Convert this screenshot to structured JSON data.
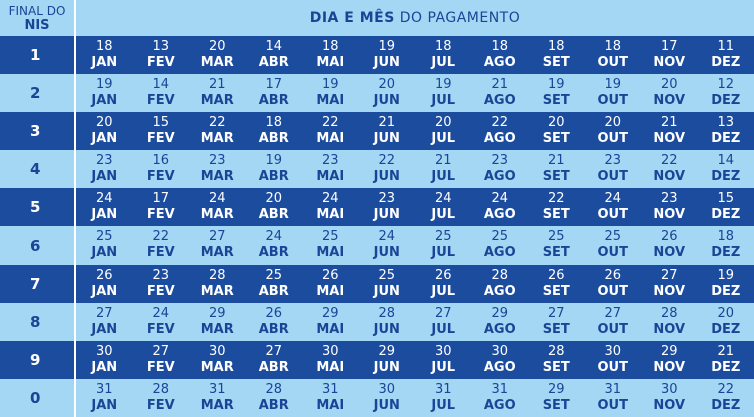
{
  "header": {
    "nis_line1": "FINAL DO",
    "nis_line2": "NIS",
    "title_bold": "DIA E MÊS",
    "title_rest": "DO PAGAMENTO"
  },
  "rows": [
    {
      "nis": "1",
      "cells": [
        [
          "18",
          "JAN"
        ],
        [
          "13",
          "FEV"
        ],
        [
          "20",
          "MAR"
        ],
        [
          "14",
          "ABR"
        ],
        [
          "18",
          "MAI"
        ],
        [
          "19",
          "JUN"
        ],
        [
          "18",
          "JUL"
        ],
        [
          "18",
          "AGO"
        ],
        [
          "18",
          "SET"
        ],
        [
          "18",
          "OUT"
        ],
        [
          "17",
          "NOV"
        ],
        [
          "11",
          "DEZ"
        ]
      ]
    },
    {
      "nis": "2",
      "cells": [
        [
          "19",
          "JAN"
        ],
        [
          "14",
          "FEV"
        ],
        [
          "21",
          "MAR"
        ],
        [
          "17",
          "ABR"
        ],
        [
          "19",
          "MAI"
        ],
        [
          "20",
          "JUN"
        ],
        [
          "19",
          "JUL"
        ],
        [
          "21",
          "AGO"
        ],
        [
          "19",
          "SET"
        ],
        [
          "19",
          "OUT"
        ],
        [
          "20",
          "NOV"
        ],
        [
          "12",
          "DEZ"
        ]
      ]
    },
    {
      "nis": "3",
      "cells": [
        [
          "20",
          "JAN"
        ],
        [
          "15",
          "FEV"
        ],
        [
          "22",
          "MAR"
        ],
        [
          "18",
          "ABR"
        ],
        [
          "22",
          "MAI"
        ],
        [
          "21",
          "JUN"
        ],
        [
          "20",
          "JUL"
        ],
        [
          "22",
          "AGO"
        ],
        [
          "20",
          "SET"
        ],
        [
          "20",
          "OUT"
        ],
        [
          "21",
          "NOV"
        ],
        [
          "13",
          "DEZ"
        ]
      ]
    },
    {
      "nis": "4",
      "cells": [
        [
          "23",
          "JAN"
        ],
        [
          "16",
          "FEV"
        ],
        [
          "23",
          "MAR"
        ],
        [
          "19",
          "ABR"
        ],
        [
          "23",
          "MAI"
        ],
        [
          "22",
          "JUN"
        ],
        [
          "21",
          "JUL"
        ],
        [
          "23",
          "AGO"
        ],
        [
          "21",
          "SET"
        ],
        [
          "23",
          "OUT"
        ],
        [
          "22",
          "NOV"
        ],
        [
          "14",
          "DEZ"
        ]
      ]
    },
    {
      "nis": "5",
      "cells": [
        [
          "24",
          "JAN"
        ],
        [
          "17",
          "FEV"
        ],
        [
          "24",
          "MAR"
        ],
        [
          "20",
          "ABR"
        ],
        [
          "24",
          "MAI"
        ],
        [
          "23",
          "JUN"
        ],
        [
          "24",
          "JUL"
        ],
        [
          "24",
          "AGO"
        ],
        [
          "22",
          "SET"
        ],
        [
          "24",
          "OUT"
        ],
        [
          "23",
          "NOV"
        ],
        [
          "15",
          "DEZ"
        ]
      ]
    },
    {
      "nis": "6",
      "cells": [
        [
          "25",
          "JAN"
        ],
        [
          "22",
          "FEV"
        ],
        [
          "27",
          "MAR"
        ],
        [
          "24",
          "ABR"
        ],
        [
          "25",
          "MAI"
        ],
        [
          "24",
          "JUN"
        ],
        [
          "25",
          "JUL"
        ],
        [
          "25",
          "AGO"
        ],
        [
          "25",
          "SET"
        ],
        [
          "25",
          "OUT"
        ],
        [
          "26",
          "NOV"
        ],
        [
          "18",
          "DEZ"
        ]
      ]
    },
    {
      "nis": "7",
      "cells": [
        [
          "26",
          "JAN"
        ],
        [
          "23",
          "FEV"
        ],
        [
          "28",
          "MAR"
        ],
        [
          "25",
          "ABR"
        ],
        [
          "26",
          "MAI"
        ],
        [
          "25",
          "JUN"
        ],
        [
          "26",
          "JUL"
        ],
        [
          "28",
          "AGO"
        ],
        [
          "26",
          "SET"
        ],
        [
          "26",
          "OUT"
        ],
        [
          "27",
          "NOV"
        ],
        [
          "19",
          "DEZ"
        ]
      ]
    },
    {
      "nis": "8",
      "cells": [
        [
          "27",
          "JAN"
        ],
        [
          "24",
          "FEV"
        ],
        [
          "29",
          "MAR"
        ],
        [
          "26",
          "ABR"
        ],
        [
          "29",
          "MAI"
        ],
        [
          "28",
          "JUN"
        ],
        [
          "27",
          "JUL"
        ],
        [
          "29",
          "AGO"
        ],
        [
          "27",
          "SET"
        ],
        [
          "27",
          "OUT"
        ],
        [
          "28",
          "NOV"
        ],
        [
          "20",
          "DEZ"
        ]
      ]
    },
    {
      "nis": "9",
      "cells": [
        [
          "30",
          "JAN"
        ],
        [
          "27",
          "FEV"
        ],
        [
          "30",
          "MAR"
        ],
        [
          "27",
          "ABR"
        ],
        [
          "30",
          "MAI"
        ],
        [
          "29",
          "JUN"
        ],
        [
          "30",
          "JUL"
        ],
        [
          "30",
          "AGO"
        ],
        [
          "28",
          "SET"
        ],
        [
          "30",
          "OUT"
        ],
        [
          "29",
          "NOV"
        ],
        [
          "21",
          "DEZ"
        ]
      ]
    },
    {
      "nis": "0",
      "cells": [
        [
          "31",
          "JAN"
        ],
        [
          "28",
          "FEV"
        ],
        [
          "31",
          "MAR"
        ],
        [
          "28",
          "ABR"
        ],
        [
          "31",
          "MAI"
        ],
        [
          "30",
          "JUN"
        ],
        [
          "31",
          "JUL"
        ],
        [
          "31",
          "AGO"
        ],
        [
          "29",
          "SET"
        ],
        [
          "31",
          "OUT"
        ],
        [
          "30",
          "NOV"
        ],
        [
          "22",
          "DEZ"
        ]
      ]
    }
  ]
}
